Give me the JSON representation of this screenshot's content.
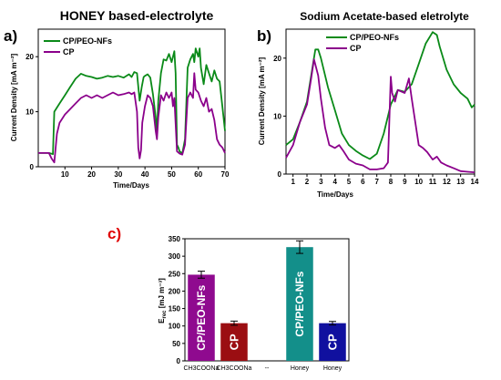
{
  "panels": {
    "a": "a)",
    "b": "b)",
    "c": "c)"
  },
  "chart_data": [
    {
      "type": "line",
      "title": "HONEY based-electrolyte",
      "xlabel": "Time/Days",
      "ylabel": "Current Density [mA m⁻²]",
      "xlim": [
        0,
        70
      ],
      "ylim": [
        0,
        25
      ],
      "xticks": [
        10,
        20,
        30,
        40,
        50,
        60,
        70
      ],
      "yticks": [
        0,
        10,
        20
      ],
      "legend": "top-left",
      "series": [
        {
          "name": "CP/PEO-NFs",
          "color": "#0a8a18",
          "points": [
            [
              0,
              2.5
            ],
            [
              4,
              2.5
            ],
            [
              5.5,
              2.3
            ],
            [
              6,
              10
            ],
            [
              8,
              11.5
            ],
            [
              10,
              13
            ],
            [
              12,
              14.5
            ],
            [
              14,
              16
            ],
            [
              16,
              16.9
            ],
            [
              18,
              16.5
            ],
            [
              20,
              16.3
            ],
            [
              22,
              16
            ],
            [
              24,
              16.2
            ],
            [
              26,
              16.5
            ],
            [
              28,
              16.3
            ],
            [
              30,
              16.5
            ],
            [
              32,
              16.2
            ],
            [
              34,
              16.8
            ],
            [
              35,
              16.3
            ],
            [
              36,
              17.2
            ],
            [
              37,
              17
            ],
            [
              38,
              12
            ],
            [
              38.8,
              14.5
            ],
            [
              39.5,
              16.3
            ],
            [
              40,
              16.5
            ],
            [
              41,
              16.8
            ],
            [
              42,
              16.2
            ],
            [
              43,
              13.2
            ],
            [
              44,
              9
            ],
            [
              44.5,
              6.5
            ],
            [
              45,
              12
            ],
            [
              46,
              17
            ],
            [
              47,
              19.5
            ],
            [
              48,
              19.3
            ],
            [
              49,
              20.5
            ],
            [
              50,
              19
            ],
            [
              51,
              21
            ],
            [
              51.5,
              17
            ],
            [
              52,
              4
            ],
            [
              52.5,
              3.5
            ],
            [
              53,
              2.8
            ],
            [
              54,
              2.4
            ],
            [
              55,
              5
            ],
            [
              56,
              18
            ],
            [
              57,
              19.5
            ],
            [
              58,
              20.5
            ],
            [
              58.5,
              19
            ],
            [
              59,
              21.5
            ],
            [
              60,
              20
            ],
            [
              60.5,
              21.5
            ],
            [
              61,
              18
            ],
            [
              62,
              15
            ],
            [
              63,
              18.5
            ],
            [
              64,
              17
            ],
            [
              65,
              15.5
            ],
            [
              66,
              17.5
            ],
            [
              67,
              16
            ],
            [
              68,
              15.5
            ],
            [
              69,
              11
            ],
            [
              70,
              6.5
            ]
          ]
        },
        {
          "name": "CP",
          "color": "#8b008b",
          "points": [
            [
              0,
              2.5
            ],
            [
              4,
              2.5
            ],
            [
              5,
              1.5
            ],
            [
              6,
              0.8
            ],
            [
              7,
              6
            ],
            [
              8,
              8
            ],
            [
              10,
              9.5
            ],
            [
              12,
              10.5
            ],
            [
              14,
              11.5
            ],
            [
              16,
              12.5
            ],
            [
              18,
              13
            ],
            [
              20,
              12.5
            ],
            [
              22,
              13
            ],
            [
              24,
              12.5
            ],
            [
              26,
              13
            ],
            [
              28,
              13.5
            ],
            [
              30,
              13
            ],
            [
              32,
              13.2
            ],
            [
              34,
              13.5
            ],
            [
              35,
              13.2
            ],
            [
              36,
              13.5
            ],
            [
              37,
              10
            ],
            [
              37.5,
              3.5
            ],
            [
              38,
              1.5
            ],
            [
              38.5,
              3
            ],
            [
              39,
              8
            ],
            [
              40,
              11
            ],
            [
              41,
              13
            ],
            [
              42,
              12.5
            ],
            [
              43,
              11
            ],
            [
              44,
              6.5
            ],
            [
              44.5,
              5
            ],
            [
              45,
              9
            ],
            [
              46,
              13
            ],
            [
              47,
              12
            ],
            [
              48,
              13.5
            ],
            [
              49,
              12.5
            ],
            [
              50,
              13.5
            ],
            [
              50.5,
              11
            ],
            [
              51,
              12.5
            ],
            [
              52,
              2.8
            ],
            [
              53,
              2.4
            ],
            [
              54,
              2.2
            ],
            [
              55,
              4
            ],
            [
              56,
              12.5
            ],
            [
              57,
              13.5
            ],
            [
              58,
              12.5
            ],
            [
              58.5,
              17
            ],
            [
              59,
              14
            ],
            [
              60,
              13.5
            ],
            [
              61,
              12
            ],
            [
              62,
              11
            ],
            [
              63,
              12.5
            ],
            [
              64,
              10
            ],
            [
              65,
              10.5
            ],
            [
              66,
              8.5
            ],
            [
              67,
              5
            ],
            [
              68,
              4
            ],
            [
              69,
              3.5
            ],
            [
              70,
              2.5
            ]
          ]
        }
      ]
    },
    {
      "type": "line",
      "title": "Sodium Acetate-based eletrolyte",
      "xlabel": "Time/Days",
      "ylabel": "Current Density [mA m⁻²]",
      "xlim": [
        0.5,
        14
      ],
      "ylim": [
        0,
        25
      ],
      "xticks": [
        1,
        2,
        3,
        4,
        5,
        6,
        7,
        8,
        9,
        10,
        11,
        12,
        13,
        14
      ],
      "yticks": [
        0,
        10,
        20
      ],
      "legend": "top-center",
      "series": [
        {
          "name": "CP/PEO-NFs",
          "color": "#0a8a18",
          "points": [
            [
              0.5,
              5
            ],
            [
              1,
              6
            ],
            [
              1.5,
              9
            ],
            [
              2,
              12.5
            ],
            [
              2.3,
              17
            ],
            [
              2.6,
              21.5
            ],
            [
              2.8,
              21.5
            ],
            [
              3,
              20
            ],
            [
              3.5,
              15
            ],
            [
              4,
              11
            ],
            [
              4.5,
              7
            ],
            [
              5,
              5
            ],
            [
              5.5,
              4
            ],
            [
              6,
              3.2
            ],
            [
              6.5,
              2.6
            ],
            [
              7,
              3.5
            ],
            [
              7.5,
              7
            ],
            [
              8,
              12
            ],
            [
              8.5,
              14.5
            ],
            [
              9,
              14.2
            ],
            [
              9.5,
              15.5
            ],
            [
              10,
              19
            ],
            [
              10.5,
              22.5
            ],
            [
              11,
              24.5
            ],
            [
              11.3,
              24
            ],
            [
              11.5,
              22
            ],
            [
              12,
              18
            ],
            [
              12.5,
              15.5
            ],
            [
              13,
              14
            ],
            [
              13.5,
              13
            ],
            [
              13.8,
              11.5
            ],
            [
              14,
              12
            ]
          ]
        },
        {
          "name": "CP",
          "color": "#8b008b",
          "points": [
            [
              0.5,
              2.8
            ],
            [
              1,
              5
            ],
            [
              1.5,
              9
            ],
            [
              2,
              12
            ],
            [
              2.3,
              16.5
            ],
            [
              2.5,
              19.8
            ],
            [
              2.8,
              17
            ],
            [
              3,
              13
            ],
            [
              3.3,
              8
            ],
            [
              3.6,
              5
            ],
            [
              4,
              4.5
            ],
            [
              4.3,
              5
            ],
            [
              4.6,
              4
            ],
            [
              5,
              2.5
            ],
            [
              5.5,
              1.8
            ],
            [
              6,
              1.5
            ],
            [
              6.5,
              0.8
            ],
            [
              7,
              0.8
            ],
            [
              7.5,
              1
            ],
            [
              7.8,
              2
            ],
            [
              8,
              16.8
            ],
            [
              8.1,
              14
            ],
            [
              8.3,
              12.5
            ],
            [
              8.5,
              14.5
            ],
            [
              9,
              14
            ],
            [
              9.3,
              16.5
            ],
            [
              9.5,
              13
            ],
            [
              10,
              5
            ],
            [
              10.3,
              4.5
            ],
            [
              10.6,
              3.8
            ],
            [
              11,
              2.5
            ],
            [
              11.3,
              3
            ],
            [
              11.6,
              2
            ],
            [
              12,
              1.5
            ],
            [
              12.5,
              1
            ],
            [
              13,
              0.5
            ],
            [
              13.5,
              0.4
            ],
            [
              14,
              0.3
            ]
          ]
        }
      ]
    },
    {
      "type": "bar",
      "title": "",
      "ylabel_main": "E",
      "ylabel_sub": "rec",
      "ylabel_unit": " [mJ m⁻³]",
      "ylim": [
        0,
        350
      ],
      "yticks": [
        0,
        50,
        100,
        150,
        200,
        250,
        300,
        350
      ],
      "categories": [
        "CH3COONa",
        "CH3COONa",
        "--",
        "Honey",
        "Honey"
      ],
      "bars": [
        {
          "label": "CP/PEO-NFs",
          "value": 247,
          "error": 10,
          "color": "#8f0a8f"
        },
        {
          "label": "CP",
          "value": 108,
          "error": 6,
          "color": "#9b0e12"
        },
        {
          "label": "",
          "value": 0,
          "error": 0,
          "color": "#ffffff"
        },
        {
          "label": "CP/PEO-NFs",
          "value": 326,
          "error": 18,
          "color": "#138f8a"
        },
        {
          "label": "CP",
          "value": 108,
          "error": 5,
          "color": "#10109f"
        }
      ]
    }
  ]
}
